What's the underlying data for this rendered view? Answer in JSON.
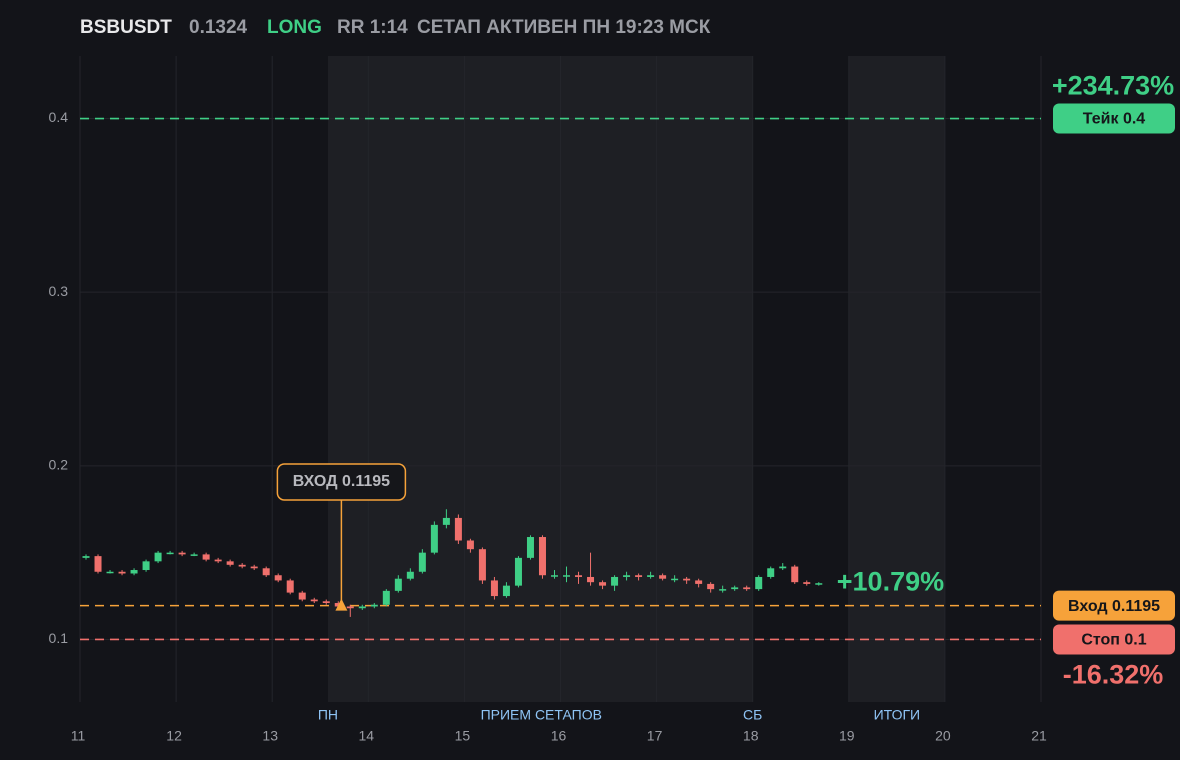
{
  "header": {
    "symbol": "BSBUSDT",
    "price": "0.1324",
    "side": "LONG",
    "rr": "RR 1:14",
    "status": "СЕТАП АКТИВЕН ПН 19:23 МСК"
  },
  "chart_data": {
    "type": "candlestick",
    "up_color": "#3fcf86",
    "down_color": "#f0706c",
    "x": [
      11.0625,
      11.1875,
      11.3125,
      11.4375,
      11.5625,
      11.6875,
      11.8125,
      11.9375,
      12.0625,
      12.1875,
      12.3125,
      12.4375,
      12.5625,
      12.6875,
      12.8125,
      12.9375,
      13.0625,
      13.1875,
      13.3125,
      13.4375,
      13.5625,
      13.6875,
      13.8125,
      13.9375,
      14.0625,
      14.1875,
      14.3125,
      14.4375,
      14.5625,
      14.6875,
      14.8125,
      14.9375,
      15.0625,
      15.1875,
      15.3125,
      15.4375,
      15.5625,
      15.6875,
      15.8125,
      15.9375,
      16.0625,
      16.1875,
      16.3125,
      16.4375,
      16.5625,
      16.6875,
      16.8125,
      16.9375,
      17.0625,
      17.1875,
      17.3125,
      17.4375,
      17.5625,
      17.6875,
      17.8125,
      17.9375,
      18.0625,
      18.1875,
      18.3125,
      18.4375,
      18.5625,
      18.6875
    ],
    "open": [
      0.147,
      0.148,
      0.139,
      0.139,
      0.138,
      0.14,
      0.145,
      0.15,
      0.15,
      0.149,
      0.149,
      0.146,
      0.145,
      0.143,
      0.142,
      0.141,
      0.137,
      0.134,
      0.127,
      0.123,
      0.122,
      0.121,
      0.119,
      0.118,
      0.119,
      0.12,
      0.128,
      0.135,
      0.139,
      0.15,
      0.166,
      0.17,
      0.157,
      0.152,
      0.134,
      0.125,
      0.131,
      0.147,
      0.159,
      0.137,
      0.137,
      0.137,
      0.136,
      0.133,
      0.131,
      0.136,
      0.137,
      0.136,
      0.137,
      0.135,
      0.135,
      0.134,
      0.132,
      0.129,
      0.129,
      0.13,
      0.129,
      0.136,
      0.141,
      0.142,
      0.133,
      0.132
    ],
    "high": [
      0.149,
      0.149,
      0.14,
      0.14,
      0.141,
      0.146,
      0.151,
      0.151,
      0.151,
      0.15,
      0.15,
      0.147,
      0.146,
      0.144,
      0.143,
      0.142,
      0.138,
      0.135,
      0.128,
      0.124,
      0.123,
      0.122,
      0.12,
      0.12,
      0.121,
      0.129,
      0.137,
      0.141,
      0.152,
      0.168,
      0.175,
      0.172,
      0.158,
      0.153,
      0.136,
      0.133,
      0.148,
      0.16,
      0.16,
      0.14,
      0.142,
      0.139,
      0.15,
      0.134,
      0.137,
      0.139,
      0.138,
      0.139,
      0.138,
      0.137,
      0.136,
      0.135,
      0.133,
      0.131,
      0.131,
      0.131,
      0.137,
      0.142,
      0.144,
      0.143,
      0.134,
      0.133
    ],
    "low": [
      0.146,
      0.138,
      0.138,
      0.137,
      0.137,
      0.139,
      0.144,
      0.149,
      0.148,
      0.148,
      0.145,
      0.144,
      0.142,
      0.141,
      0.14,
      0.136,
      0.133,
      0.126,
      0.122,
      0.121,
      0.12,
      0.117,
      0.113,
      0.117,
      0.118,
      0.119,
      0.127,
      0.134,
      0.138,
      0.149,
      0.164,
      0.155,
      0.15,
      0.132,
      0.123,
      0.124,
      0.13,
      0.146,
      0.135,
      0.135,
      0.133,
      0.132,
      0.131,
      0.129,
      0.128,
      0.134,
      0.134,
      0.135,
      0.134,
      0.133,
      0.132,
      0.13,
      0.127,
      0.127,
      0.128,
      0.128,
      0.128,
      0.135,
      0.14,
      0.132,
      0.131,
      0.131
    ],
    "close": [
      0.148,
      0.139,
      0.139,
      0.138,
      0.14,
      0.145,
      0.15,
      0.15,
      0.149,
      0.149,
      0.146,
      0.145,
      0.143,
      0.142,
      0.141,
      0.137,
      0.134,
      0.127,
      0.123,
      0.122,
      0.121,
      0.119,
      0.118,
      0.119,
      0.12,
      0.128,
      0.135,
      0.139,
      0.15,
      0.166,
      0.17,
      0.157,
      0.152,
      0.134,
      0.125,
      0.131,
      0.147,
      0.159,
      0.137,
      0.137,
      0.137,
      0.136,
      0.133,
      0.131,
      0.136,
      0.137,
      0.136,
      0.137,
      0.135,
      0.135,
      0.134,
      0.132,
      0.129,
      0.129,
      0.13,
      0.129,
      0.136,
      0.141,
      0.142,
      0.133,
      0.132,
      0.1324
    ],
    "xlim": [
      11,
      21
    ],
    "xticks": [
      11,
      12,
      13,
      14,
      15,
      16,
      17,
      18,
      19,
      20,
      21
    ],
    "ylim": [
      0.064,
      0.436
    ],
    "yticks": [
      0.1,
      0.2,
      0.3,
      0.4
    ],
    "grid": true,
    "shaded": [
      {
        "start": 13.58,
        "end": 18
      },
      {
        "start": 19,
        "end": 20
      }
    ],
    "sessions": [
      {
        "label": "ПН",
        "x": 13.58
      },
      {
        "label": "ПРИЕМ СЕТАПОВ",
        "x": 15.8
      },
      {
        "label": "СБ",
        "x": 18
      },
      {
        "label": "ИТОГИ",
        "x": 19.5
      }
    ],
    "levels": [
      {
        "label": "Тейк 0.4",
        "value": 0.4,
        "color": "#3fcf86",
        "change": "+234.73%"
      },
      {
        "label": "Вход 0.1195",
        "value": 0.1195,
        "color": "#f6a23a"
      },
      {
        "label": "Стоп 0.1",
        "value": 0.1,
        "color": "#f0706c",
        "change": "-16.32%"
      }
    ],
    "entry_marker": {
      "x": 13.72,
      "value": 0.1195,
      "label": "ВХОД 0.1195"
    },
    "last_change": "+10.79%"
  }
}
